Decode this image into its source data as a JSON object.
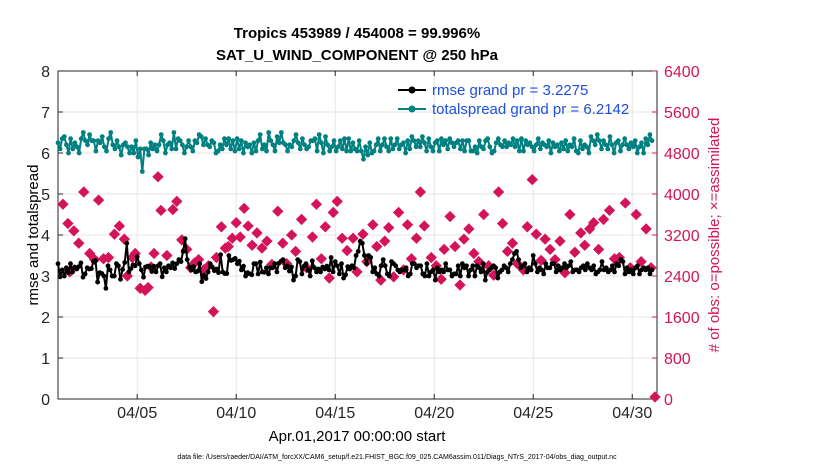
{
  "chart_data": {
    "type": "line",
    "title_line1": "Tropics 453989 / 454008 = 99.996%",
    "title_line2": "SAT_U_WIND_COMPONENT @ 250 hPa",
    "xlabel": "Apr.01,2017 00:00:00 start",
    "ylabel_left": "rmse and totalspread",
    "ylabel_right": "# of obs: o=possible; ×=assimilated",
    "footer": "data file: /Users/raeder/DAI/ATM_forcXX/CAM6_setup/f.e21.FHIST_BGC.f09_025.CAM6assim.011/Diags_NTrS_2017-04/obs_diag_output.nc",
    "xlim": [
      1.0,
      31.25
    ],
    "xticks": [
      5,
      10,
      15,
      20,
      25,
      30
    ],
    "xtick_labels": [
      "04/05",
      "04/10",
      "04/15",
      "04/20",
      "04/25",
      "04/30"
    ],
    "ylim_left": [
      0,
      8
    ],
    "yticks_left": [
      "0",
      "1",
      "2",
      "3",
      "4",
      "5",
      "6",
      "7",
      "8"
    ],
    "ylim_right": [
      0,
      6400
    ],
    "yticks_right": [
      "0",
      "800",
      "1600",
      "2400",
      "3200",
      "4000",
      "4800",
      "5600",
      "6400"
    ],
    "legend_location": "top-right",
    "colors": {
      "rmse": "#000000",
      "spread": "#008080",
      "obs": "#d4145a"
    },
    "series": [
      {
        "name": "rmse grand pr = 3.2275",
        "color": "#000000",
        "values": [
          3.3,
          2.98,
          3.15,
          3.0,
          3.2,
          3.08,
          3.3,
          3.1,
          3.22,
          3.17,
          3.23,
          3.32,
          2.97,
          3.05,
          3.2,
          3.17,
          3.18,
          3.35,
          3.38,
          2.85,
          3.08,
          3.06,
          3.0,
          2.7,
          3.25,
          3.15,
          3.0,
          3.0,
          3.3,
          3.25,
          2.92,
          3.16,
          3.33,
          3.8,
          3.1,
          3.18,
          3.27,
          3.25,
          3.47,
          3.3,
          3.15,
          2.97,
          3.22,
          3.24,
          3.23,
          3.11,
          3.24,
          3.1,
          3.25,
          3.3,
          2.98,
          3.2,
          3.1,
          3.25,
          3.2,
          3.32,
          3.18,
          3.3,
          3.4,
          3.35,
          3.6,
          3.91,
          3.4,
          3.22,
          3.15,
          3.23,
          3.1,
          3.12,
          3.3,
          2.86,
          3.02,
          2.94,
          3.1,
          3.3,
          3.22,
          3.13,
          3.17,
          3.08,
          3.52,
          3.1,
          3.06,
          3.06,
          3.5,
          3.38,
          3.4,
          3.43,
          3.3,
          3.36,
          3.15,
          3.24,
          3.0,
          3.08,
          3.05,
          3.03,
          3.3,
          3.3,
          3.05,
          3.34,
          3.1,
          3.09,
          3.2,
          3.05,
          3.2,
          3.2,
          3.3,
          3.1,
          3.31,
          3.36,
          3.4,
          3.2,
          3.25,
          3.12,
          3.22,
          2.9,
          3.0,
          3.4,
          3.35,
          3.05,
          3.24,
          3.3,
          3.15,
          3.0,
          3.37,
          3.2,
          3.1,
          3.17,
          3.1,
          3.22,
          3.17,
          3.24,
          3.15,
          3.45,
          3.1,
          3.35,
          3.25,
          3.05,
          3.3,
          2.95,
          3.03,
          3.23,
          3.17,
          3.25,
          3.2,
          3.5,
          3.6,
          3.85,
          3.8,
          3.5,
          3.3,
          3.5,
          3.45,
          3.1,
          3.2,
          3.05,
          3.0,
          3.25,
          3.4,
          3.25,
          3.05,
          3.0,
          3.35,
          3.3,
          3.25,
          3.15,
          3.1,
          3.15,
          3.15,
          3.2,
          3.0,
          3.05,
          3.3,
          3.3,
          3.2,
          3.25,
          3.25,
          3.05,
          3.0,
          3.3,
          3.0,
          3.1,
          3.15,
          2.9,
          3.2,
          3.1,
          3.15,
          3.1,
          3.3,
          3.15,
          3.15,
          3.0,
          3.05,
          3.05,
          3.25,
          3.0,
          3.3,
          3.2,
          3.25,
          3.0,
          3.15,
          3.25,
          3.0,
          3.25,
          3.2,
          3.1,
          3.3,
          2.9,
          3.1,
          3.15,
          3.2,
          3.25,
          3.2,
          2.95,
          3.1,
          3.15,
          3.25,
          3.2,
          3.1,
          3.3,
          3.4,
          3.55,
          3.6,
          3.4,
          3.2,
          3.25,
          3.3,
          3.1,
          3.2,
          3.15,
          3.5,
          3.3,
          3.1,
          3.2,
          3.15,
          3.05,
          3.3,
          3.2,
          3.2,
          3.3,
          3.3,
          3.1,
          3.25,
          3.15,
          3.2,
          3.3,
          3.2,
          3.25,
          3.35,
          3.1,
          3.15,
          3.15,
          3.1,
          3.2,
          3.25,
          3.15,
          3.3,
          3.2,
          3.15,
          3.25,
          3.05,
          3.1,
          3.15,
          3.35,
          3.15,
          3.2,
          3.1,
          3.15,
          3.25,
          3.1,
          3.3,
          3.25,
          3.4,
          3.35,
          3.05,
          3.2,
          3.1,
          3.15,
          3.05,
          3.2,
          3.25,
          3.05,
          3.15,
          3.2,
          3.15,
          3.2,
          3.05,
          3.15
        ]
      },
      {
        "name": "totalspread grand pr = 6.2142",
        "color": "#008080",
        "values": [
          6.25,
          6.1,
          6.35,
          6.4,
          6.2,
          6.0,
          6.35,
          6.1,
          6.25,
          6.15,
          6.0,
          6.35,
          6.5,
          6.3,
          6.2,
          6.45,
          6.3,
          6.3,
          6.05,
          6.3,
          6.25,
          6.4,
          6.15,
          6.05,
          6.35,
          6.5,
          6.2,
          6.1,
          6.3,
          6.15,
          5.95,
          6.2,
          6.25,
          6.15,
          6.0,
          6.15,
          6.0,
          6.3,
          5.9,
          6.1,
          5.55,
          6.1,
          6.1,
          5.95,
          6.25,
          6.1,
          6.2,
          6.05,
          6.2,
          6.45,
          6.3,
          6.0,
          6.2,
          6.25,
          6.1,
          6.5,
          6.1,
          6.35,
          6.3,
          6.2,
          6.0,
          6.15,
          6.3,
          6.15,
          6.05,
          6.3,
          6.25,
          6.45,
          6.4,
          6.2,
          6.35,
          6.2,
          6.15,
          6.3,
          6.25,
          6.0,
          6.05,
          6.2,
          6.1,
          6.35,
          6.2,
          6.35,
          6.1,
          6.3,
          6.05,
          6.35,
          6.1,
          6.3,
          6.0,
          6.25,
          6.15,
          6.2,
          6.0,
          6.25,
          6.05,
          6.3,
          6.45,
          6.1,
          6.2,
          6.05,
          6.5,
          6.3,
          6.2,
          6.05,
          6.4,
          6.25,
          6.5,
          6.25,
          6.2,
          6.05,
          6.2,
          6.15,
          6.3,
          6.45,
          6.25,
          6.1,
          6.35,
          6.2,
          6.1,
          6.15,
          6.3,
          6.3,
          6.35,
          6.05,
          6.45,
          6.25,
          6.0,
          6.4,
          6.2,
          6.05,
          6.15,
          6.3,
          6.05,
          6.15,
          6.3,
          6.1,
          6.35,
          6.05,
          6.35,
          6.05,
          6.25,
          6.1,
          6.05,
          6.3,
          6.05,
          5.85,
          6.15,
          5.95,
          6.25,
          6.0,
          6.05,
          6.2,
          6.35,
          6.05,
          6.2,
          6.35,
          6.15,
          6.05,
          6.35,
          6.1,
          6.2,
          6.35,
          6.1,
          6.2,
          6.25,
          6.0,
          6.3,
          6.1,
          6.4,
          6.3,
          6.15,
          6.3,
          6.15,
          6.4,
          6.25,
          6.05,
          6.35,
          6.15,
          6.05,
          6.25,
          6.3,
          6.05,
          6.35,
          6.2,
          6.3,
          6.1,
          6.35,
          6.25,
          6.15,
          6.25,
          6.3,
          6.1,
          6.3,
          6.05,
          6.3,
          6.3,
          6.05,
          6.05,
          6.15,
          6.0,
          6.3,
          6.15,
          6.1,
          6.3,
          6.35,
          6.15,
          6.0,
          6.05,
          6.25,
          6.35,
          6.2,
          6.15,
          6.3,
          6.15,
          6.25,
          6.2,
          6.35,
          6.15,
          6.3,
          6.05,
          6.35,
          6.05,
          6.3,
          6.2,
          6.25,
          6.15,
          6.05,
          6.2,
          6.35,
          6.1,
          6.25,
          6.2,
          6.15,
          6.3,
          6.0,
          6.25,
          6.15,
          6.2,
          6.05,
          6.25,
          6.1,
          6.3,
          6.05,
          6.2,
          6.15,
          6.35,
          6.05,
          6.0,
          6.3,
          6.1,
          6.2,
          6.15,
          6.0,
          6.4,
          6.3,
          6.2,
          6.45,
          6.3,
          6.1,
          6.3,
          6.2,
          6.1,
          6.4,
          6.2,
          6.0,
          6.25,
          6.3,
          6.05,
          6.2,
          6.35,
          6.2,
          6.1,
          6.25,
          6.15,
          6.3,
          6.0,
          6.15,
          6.25,
          6.0,
          6.35,
          6.2,
          6.45,
          6.3
        ]
      }
    ],
    "obs_points": [
      [
        1.25,
        4.75
      ],
      [
        1.5,
        4.28
      ],
      [
        1.8,
        4.1
      ],
      [
        1.6,
        3.1
      ],
      [
        2.05,
        3.8
      ],
      [
        2.3,
        5.05
      ],
      [
        2.6,
        3.55
      ],
      [
        2.85,
        3.4
      ],
      [
        3.05,
        4.85
      ],
      [
        3.3,
        3.42
      ],
      [
        3.55,
        3.45
      ],
      [
        3.85,
        4.02
      ],
      [
        4.1,
        4.22
      ],
      [
        4.35,
        3.9
      ],
      [
        4.5,
        3.0
      ],
      [
        4.75,
        3.45
      ],
      [
        4.9,
        3.55
      ],
      [
        5.15,
        2.7
      ],
      [
        5.4,
        2.65
      ],
      [
        5.55,
        2.72
      ],
      [
        5.7,
        3.22
      ],
      [
        5.85,
        3.55
      ],
      [
        6.05,
        5.42
      ],
      [
        6.2,
        4.6
      ],
      [
        6.5,
        3.5
      ],
      [
        6.8,
        4.62
      ],
      [
        7.0,
        4.82
      ],
      [
        7.25,
        3.88
      ],
      [
        7.5,
        3.65
      ],
      [
        7.7,
        3.2
      ],
      [
        7.9,
        3.32
      ],
      [
        8.1,
        3.4
      ],
      [
        8.35,
        3.15
      ],
      [
        8.6,
        3.25
      ],
      [
        8.85,
        2.13
      ],
      [
        9.0,
        3.45
      ],
      [
        9.25,
        4.2
      ],
      [
        9.45,
        3.68
      ],
      [
        9.6,
        3.72
      ],
      [
        9.8,
        3.92
      ],
      [
        10.0,
        4.3
      ],
      [
        10.2,
        3.95
      ],
      [
        10.4,
        4.65
      ],
      [
        10.6,
        4.22
      ],
      [
        10.8,
        3.75
      ],
      [
        11.05,
        4.05
      ],
      [
        11.3,
        3.68
      ],
      [
        11.55,
        3.85
      ],
      [
        11.8,
        3.28
      ],
      [
        12.1,
        4.58
      ],
      [
        12.35,
        3.8
      ],
      [
        12.55,
        3.3
      ],
      [
        12.8,
        4.0
      ],
      [
        13.0,
        3.6
      ],
      [
        13.3,
        4.38
      ],
      [
        13.55,
        3.2
      ],
      [
        13.85,
        3.95
      ],
      [
        14.05,
        4.75
      ],
      [
        14.3,
        3.42
      ],
      [
        14.5,
        4.2
      ],
      [
        14.7,
        2.95
      ],
      [
        14.9,
        4.55
      ],
      [
        15.1,
        4.82
      ],
      [
        15.35,
        3.92
      ],
      [
        15.6,
        3.62
      ],
      [
        15.9,
        3.92
      ],
      [
        16.1,
        3.1
      ],
      [
        16.4,
        4.02
      ],
      [
        16.6,
        3.35
      ],
      [
        16.9,
        4.25
      ],
      [
        17.1,
        3.72
      ],
      [
        17.3,
        2.9
      ],
      [
        17.5,
        3.85
      ],
      [
        17.7,
        4.18
      ],
      [
        17.95,
        2.98
      ],
      [
        18.2,
        4.55
      ],
      [
        18.45,
        3.15
      ],
      [
        18.65,
        4.25
      ],
      [
        18.85,
        3.42
      ],
      [
        19.1,
        3.92
      ],
      [
        19.3,
        5.05
      ],
      [
        19.5,
        4.22
      ],
      [
        19.85,
        3.45
      ],
      [
        20.1,
        3.25
      ],
      [
        20.35,
        2.92
      ],
      [
        20.5,
        3.65
      ],
      [
        20.8,
        4.45
      ],
      [
        21.05,
        3.72
      ],
      [
        21.3,
        2.78
      ],
      [
        21.5,
        3.9
      ],
      [
        21.75,
        4.15
      ],
      [
        22.0,
        3.55
      ],
      [
        22.25,
        3.35
      ],
      [
        22.5,
        4.5
      ],
      [
        22.75,
        3.25
      ],
      [
        23.0,
        3.02
      ],
      [
        23.25,
        5.05
      ],
      [
        23.45,
        4.28
      ],
      [
        23.7,
        3.6
      ],
      [
        23.95,
        3.8
      ],
      [
        24.2,
        3.3
      ],
      [
        24.5,
        3.15
      ],
      [
        24.7,
        4.2
      ],
      [
        24.95,
        5.35
      ],
      [
        25.15,
        4.02
      ],
      [
        25.4,
        3.38
      ],
      [
        25.6,
        3.9
      ],
      [
        25.85,
        3.65
      ],
      [
        26.1,
        3.4
      ],
      [
        26.35,
        3.85
      ],
      [
        26.6,
        3.08
      ],
      [
        26.85,
        4.5
      ],
      [
        27.1,
        3.58
      ],
      [
        27.4,
        4.05
      ],
      [
        27.6,
        3.75
      ],
      [
        27.85,
        4.15
      ],
      [
        28.05,
        4.3
      ],
      [
        28.3,
        3.65
      ],
      [
        28.55,
        4.38
      ],
      [
        28.85,
        4.6
      ],
      [
        29.1,
        3.42
      ],
      [
        29.35,
        3.45
      ],
      [
        29.65,
        4.78
      ],
      [
        29.9,
        3.2
      ],
      [
        30.2,
        4.5
      ],
      [
        30.45,
        3.35
      ],
      [
        30.7,
        4.15
      ],
      [
        30.95,
        3.2
      ],
      [
        31.15,
        0.05
      ]
    ]
  }
}
